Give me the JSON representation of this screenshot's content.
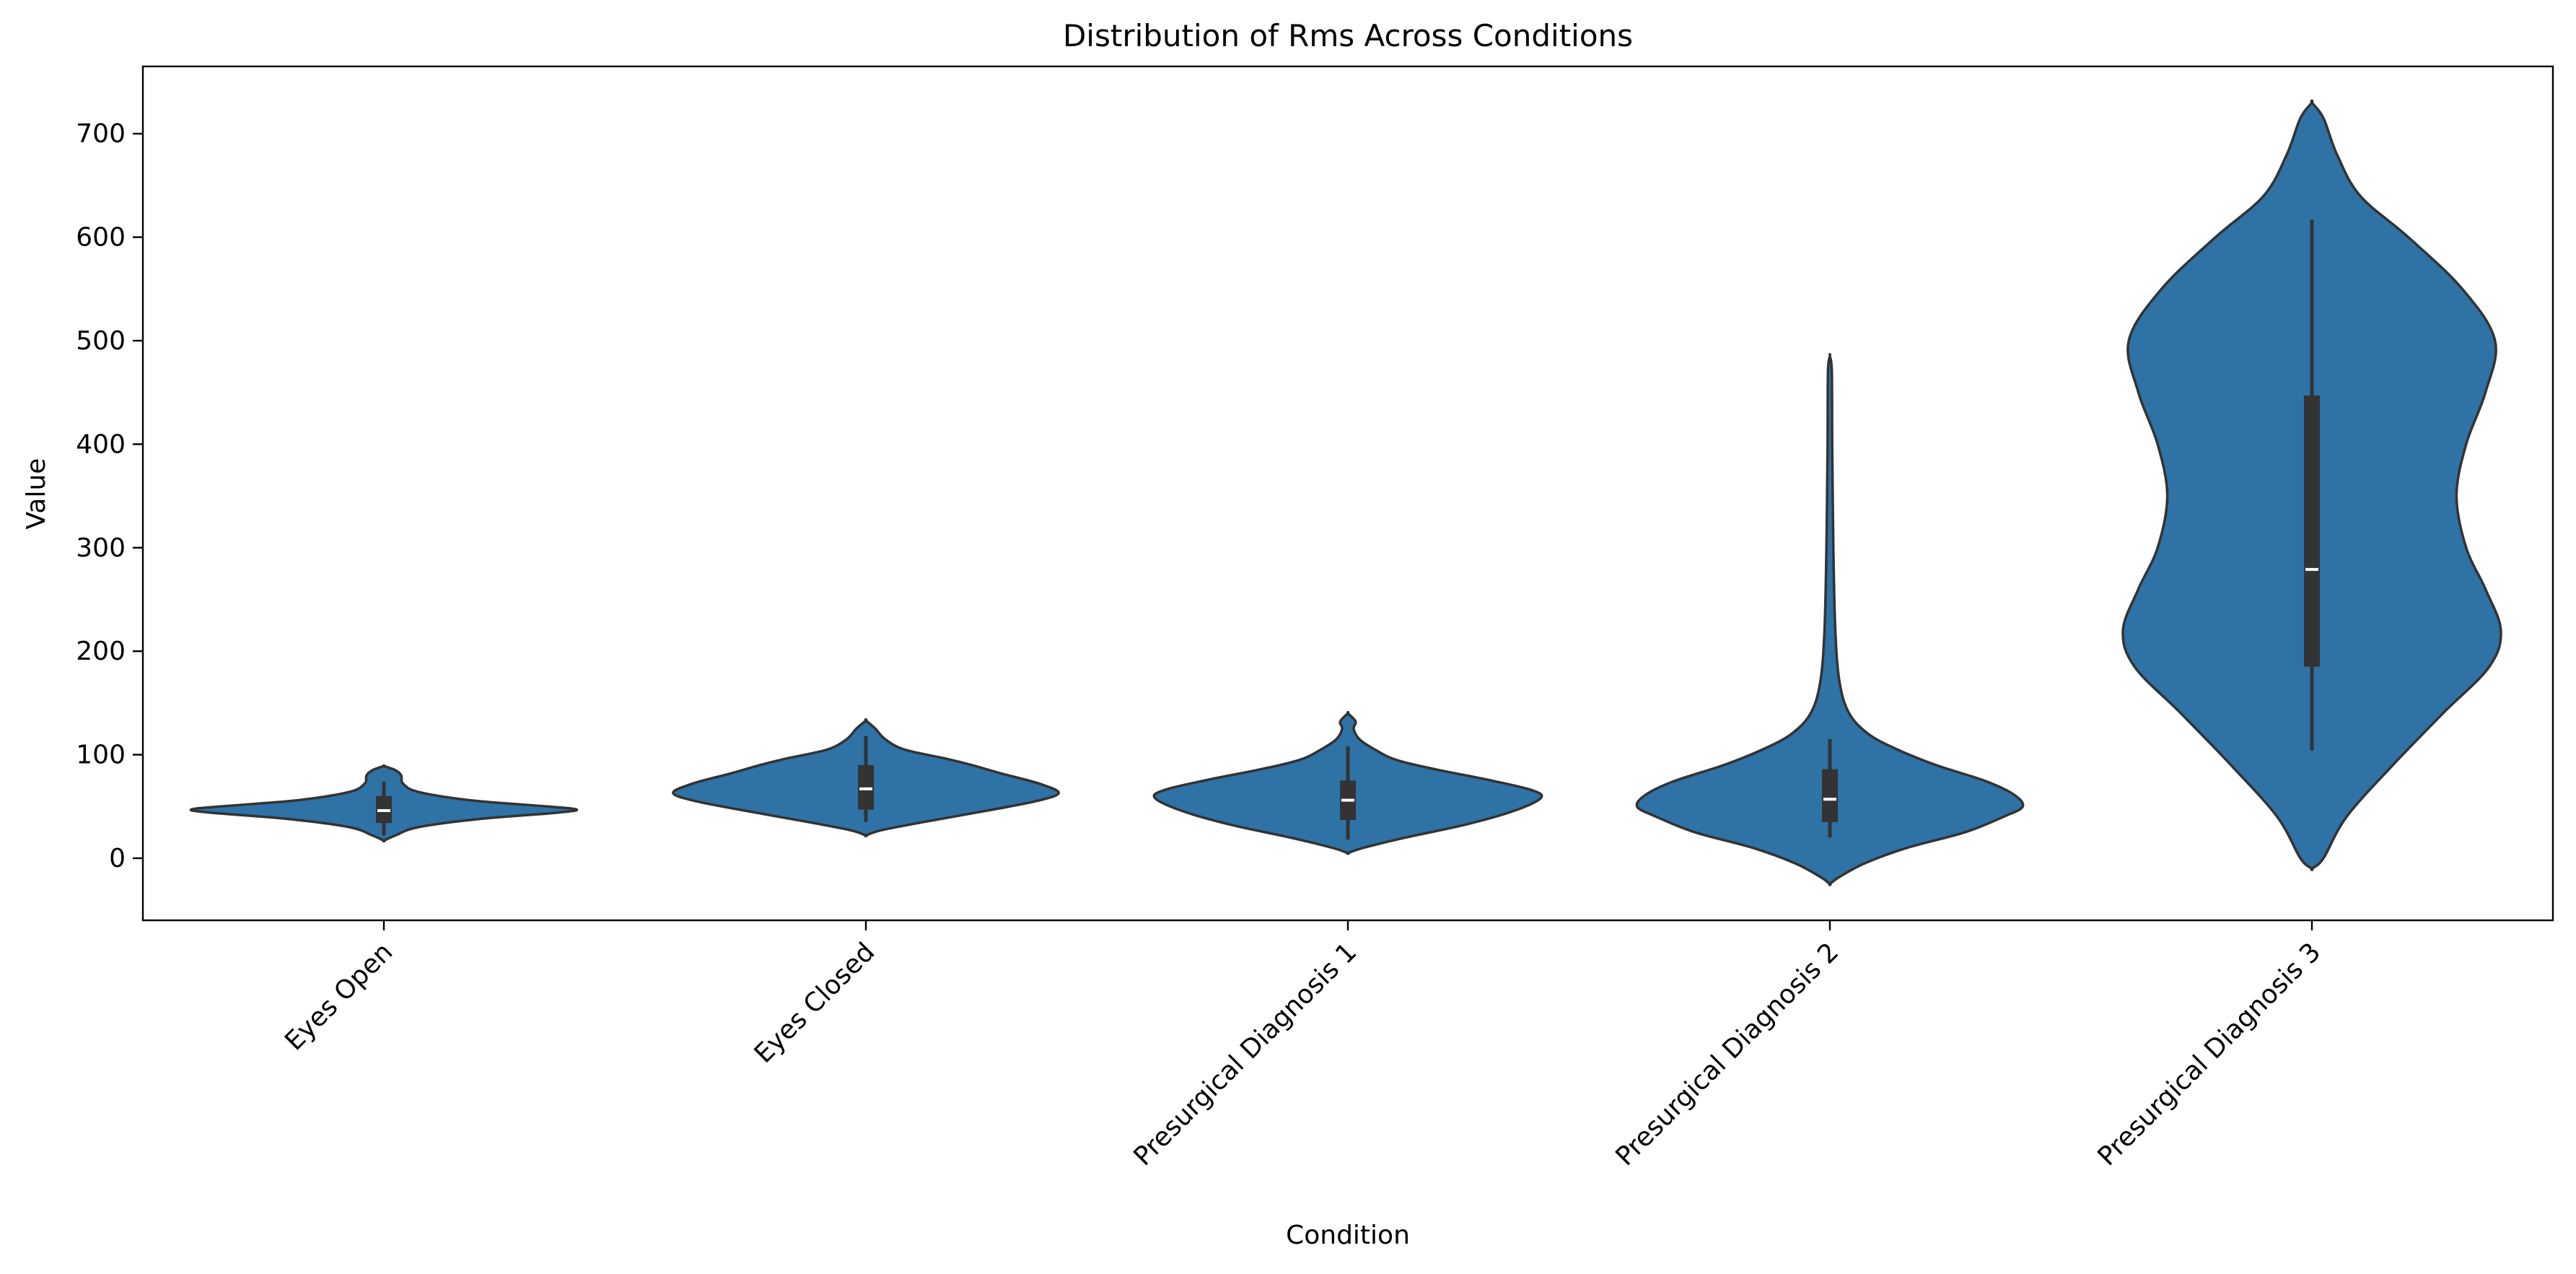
{
  "chart_data": {
    "type": "violin",
    "title": "Distribution of Rms Across Conditions",
    "xlabel": "Condition",
    "ylabel": "Value",
    "ylim": [
      -60,
      765
    ],
    "yticks": [
      0,
      100,
      200,
      300,
      400,
      500,
      600,
      700
    ],
    "grid": false,
    "legend": "none",
    "color": "#2e72a6",
    "edge_color": "#333333",
    "categories": [
      "Eyes Open",
      "Eyes Closed",
      "Presurgical Diagnosis 1",
      "Presurgical Diagnosis 2",
      "Presurgical Diagnosis 3"
    ],
    "violins": [
      {
        "category": "Eyes Open",
        "median": 46,
        "q1": 34,
        "q3": 60,
        "whisker_low": 22,
        "whisker_high": 74,
        "profile": [
          [
            17,
            0
          ],
          [
            22,
            0.06
          ],
          [
            30,
            0.18
          ],
          [
            38,
            0.5
          ],
          [
            44,
            0.9
          ],
          [
            47,
            1.0
          ],
          [
            50,
            0.85
          ],
          [
            56,
            0.45
          ],
          [
            64,
            0.18
          ],
          [
            72,
            0.1
          ],
          [
            80,
            0.09
          ],
          [
            85,
            0.06
          ],
          [
            89,
            0
          ]
        ]
      },
      {
        "category": "Eyes Closed",
        "median": 67,
        "q1": 47,
        "q3": 90,
        "whisker_low": 35,
        "whisker_high": 118,
        "profile": [
          [
            22,
            0
          ],
          [
            27,
            0.08
          ],
          [
            35,
            0.3
          ],
          [
            45,
            0.6
          ],
          [
            55,
            0.88
          ],
          [
            63,
            1.0
          ],
          [
            72,
            0.9
          ],
          [
            82,
            0.7
          ],
          [
            90,
            0.55
          ],
          [
            96,
            0.42
          ],
          [
            105,
            0.2
          ],
          [
            115,
            0.1
          ],
          [
            125,
            0.05
          ],
          [
            133,
            0
          ]
        ]
      },
      {
        "category": "Presurgical Diagnosis 1",
        "median": 56,
        "q1": 37,
        "q3": 75,
        "whisker_low": 18,
        "whisker_high": 108,
        "profile": [
          [
            5,
            0
          ],
          [
            10,
            0.08
          ],
          [
            20,
            0.3
          ],
          [
            32,
            0.6
          ],
          [
            45,
            0.85
          ],
          [
            58,
            1.0
          ],
          [
            66,
            0.95
          ],
          [
            76,
            0.72
          ],
          [
            86,
            0.45
          ],
          [
            95,
            0.25
          ],
          [
            105,
            0.14
          ],
          [
            115,
            0.06
          ],
          [
            125,
            0.03
          ],
          [
            132,
            0.04
          ],
          [
            140,
            0
          ]
        ]
      },
      {
        "category": "Presurgical Diagnosis 2",
        "median": 57,
        "q1": 35,
        "q3": 86,
        "whisker_low": 20,
        "whisker_high": 115,
        "profile": [
          [
            -25,
            0
          ],
          [
            -18,
            0.05
          ],
          [
            -5,
            0.18
          ],
          [
            10,
            0.4
          ],
          [
            25,
            0.7
          ],
          [
            40,
            0.9
          ],
          [
            50,
            1.0
          ],
          [
            62,
            0.95
          ],
          [
            75,
            0.8
          ],
          [
            90,
            0.55
          ],
          [
            105,
            0.35
          ],
          [
            120,
            0.2
          ],
          [
            140,
            0.1
          ],
          [
            170,
            0.05
          ],
          [
            220,
            0.028
          ],
          [
            300,
            0.018
          ],
          [
            400,
            0.012
          ],
          [
            470,
            0.01
          ],
          [
            485,
            0
          ]
        ]
      },
      {
        "category": "Presurgical Diagnosis 3",
        "median": 279,
        "q1": 185,
        "q3": 447,
        "whisker_low": 104,
        "whisker_high": 617,
        "profile": [
          [
            -10,
            0
          ],
          [
            0,
            0.06
          ],
          [
            40,
            0.18
          ],
          [
            90,
            0.42
          ],
          [
            140,
            0.68
          ],
          [
            185,
            0.92
          ],
          [
            220,
            0.98
          ],
          [
            260,
            0.9
          ],
          [
            300,
            0.8
          ],
          [
            350,
            0.75
          ],
          [
            400,
            0.8
          ],
          [
            450,
            0.9
          ],
          [
            500,
            0.95
          ],
          [
            550,
            0.78
          ],
          [
            600,
            0.5
          ],
          [
            640,
            0.25
          ],
          [
            680,
            0.13
          ],
          [
            715,
            0.06
          ],
          [
            730,
            0
          ]
        ]
      }
    ]
  }
}
